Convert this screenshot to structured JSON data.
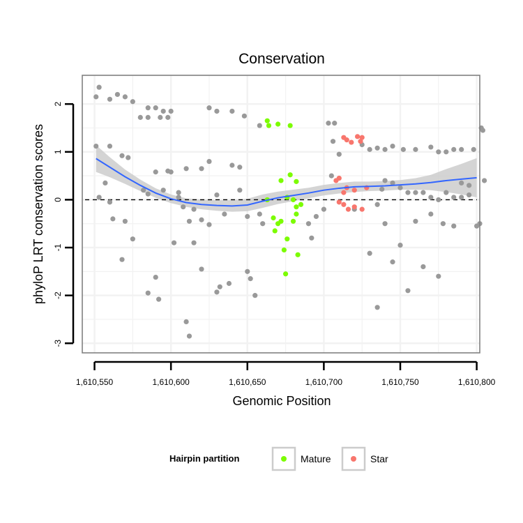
{
  "chart_data": {
    "type": "scatter",
    "title": "Conservation",
    "xlabel": "Genomic Position",
    "ylabel": "phyloP LRT conservation scores",
    "xlim": [
      1610542,
      1610802
    ],
    "ylim": [
      -3.2,
      2.6
    ],
    "x_ticks": [
      {
        "value": 1610550,
        "label": "1,610,550"
      },
      {
        "value": 1610600,
        "label": "1,610,600"
      },
      {
        "value": 1610650,
        "label": "1,610,650"
      },
      {
        "value": 1610700,
        "label": "1,610,700"
      },
      {
        "value": 1610750,
        "label": "1,610,750"
      },
      {
        "value": 1610800,
        "label": "1,610,800"
      }
    ],
    "y_ticks": [
      {
        "value": -3,
        "label": "-3"
      },
      {
        "value": -2,
        "label": "-2"
      },
      {
        "value": -1,
        "label": "-1"
      },
      {
        "value": 0,
        "label": "0"
      },
      {
        "value": 1,
        "label": "1"
      },
      {
        "value": 2,
        "label": "2"
      }
    ],
    "reference_line": {
      "y": 0,
      "style": "dashed",
      "color": "#000000"
    },
    "legend": {
      "title": "Hairpin partition",
      "position": "bottom",
      "entries": [
        {
          "label": "Mature",
          "color": "#7cfc00"
        },
        {
          "label": "Star",
          "color": "#f8766d"
        }
      ]
    },
    "colors": {
      "other": "#999999",
      "mature": "#7cfc00",
      "star": "#f8766d",
      "smooth_line": "#3366ff",
      "confidence_band": "#cccccc",
      "panel_grid": "#f2f2f2",
      "panel_border": "#808080"
    },
    "smooth": {
      "x": [
        1610551,
        1610560,
        1610570,
        1610580,
        1610590,
        1610600,
        1610610,
        1610620,
        1610630,
        1610640,
        1610650,
        1610660,
        1610670,
        1610680,
        1610690,
        1610700,
        1610710,
        1610720,
        1610730,
        1610740,
        1610750,
        1610760,
        1610770,
        1610780,
        1610790,
        1610800
      ],
      "y": [
        0.86,
        0.68,
        0.48,
        0.3,
        0.14,
        0.02,
        -0.06,
        -0.1,
        -0.12,
        -0.13,
        -0.11,
        -0.03,
        0.04,
        0.09,
        0.14,
        0.2,
        0.24,
        0.27,
        0.28,
        0.29,
        0.31,
        0.33,
        0.36,
        0.4,
        0.43,
        0.46
      ],
      "lower": [
        0.58,
        0.47,
        0.33,
        0.18,
        0.04,
        -0.07,
        -0.15,
        -0.2,
        -0.23,
        -0.25,
        -0.24,
        -0.17,
        -0.09,
        -0.03,
        0.03,
        0.09,
        0.13,
        0.16,
        0.18,
        0.19,
        0.21,
        0.21,
        0.2,
        0.16,
        0.11,
        0.05
      ],
      "upper": [
        1.14,
        0.89,
        0.63,
        0.42,
        0.24,
        0.11,
        0.03,
        0.0,
        -0.01,
        -0.01,
        0.02,
        0.11,
        0.17,
        0.21,
        0.25,
        0.31,
        0.35,
        0.38,
        0.38,
        0.39,
        0.41,
        0.45,
        0.52,
        0.64,
        0.75,
        0.87
      ]
    },
    "series": [
      {
        "name": "Other",
        "color": "#999999",
        "points": [
          [
            1610551,
            2.15
          ],
          [
            1610553,
            2.35
          ],
          [
            1610560,
            2.1
          ],
          [
            1610565,
            2.2
          ],
          [
            1610570,
            2.15
          ],
          [
            1610575,
            2.05
          ],
          [
            1610585,
            1.92
          ],
          [
            1610590,
            1.92
          ],
          [
            1610595,
            1.85
          ],
          [
            1610600,
            1.85
          ],
          [
            1610580,
            1.72
          ],
          [
            1610585,
            1.72
          ],
          [
            1610593,
            1.72
          ],
          [
            1610598,
            1.72
          ],
          [
            1610625,
            1.92
          ],
          [
            1610630,
            1.85
          ],
          [
            1610640,
            1.85
          ],
          [
            1610648,
            1.75
          ],
          [
            1610658,
            1.55
          ],
          [
            1610703,
            1.6
          ],
          [
            1610707,
            1.6
          ],
          [
            1610551,
            1.12
          ],
          [
            1610560,
            1.12
          ],
          [
            1610568,
            0.92
          ],
          [
            1610572,
            0.88
          ],
          [
            1610557,
            0.35
          ],
          [
            1610553,
            0.05
          ],
          [
            1610562,
            -0.4
          ],
          [
            1610560,
            -0.05
          ],
          [
            1610570,
            -0.45
          ],
          [
            1610575,
            -0.82
          ],
          [
            1610568,
            -1.25
          ],
          [
            1610585,
            -1.95
          ],
          [
            1610590,
            -1.62
          ],
          [
            1610592,
            -2.08
          ],
          [
            1610595,
            0.2
          ],
          [
            1610598,
            0.6
          ],
          [
            1610600,
            0.58
          ],
          [
            1610590,
            0.58
          ],
          [
            1610605,
            0.05
          ],
          [
            1610608,
            -0.15
          ],
          [
            1610602,
            -0.9
          ],
          [
            1610612,
            -0.45
          ],
          [
            1610615,
            -0.9
          ],
          [
            1610610,
            -2.55
          ],
          [
            1610612,
            -2.85
          ],
          [
            1610620,
            -1.45
          ],
          [
            1610625,
            -0.52
          ],
          [
            1610630,
            -1.93
          ],
          [
            1610632,
            -1.82
          ],
          [
            1610635,
            -0.3
          ],
          [
            1610640,
            0.72
          ],
          [
            1610645,
            0.68
          ],
          [
            1610638,
            -1.75
          ],
          [
            1610650,
            -1.5
          ],
          [
            1610652,
            -1.65
          ],
          [
            1610655,
            -2.0
          ],
          [
            1610660,
            -0.5
          ],
          [
            1610658,
            -0.3
          ],
          [
            1610650,
            -0.35
          ],
          [
            1610645,
            0.2
          ],
          [
            1610620,
            0.65
          ],
          [
            1610625,
            0.8
          ],
          [
            1610630,
            0.1
          ],
          [
            1610615,
            -0.2
          ],
          [
            1610620,
            -0.42
          ],
          [
            1610605,
            0.15
          ],
          [
            1610610,
            0.65
          ],
          [
            1610585,
            0.12
          ],
          [
            1610582,
            0.2
          ],
          [
            1610690,
            -0.5
          ],
          [
            1610692,
            -0.8
          ],
          [
            1610695,
            -0.35
          ],
          [
            1610700,
            -0.2
          ],
          [
            1610705,
            0.5
          ],
          [
            1610706,
            1.22
          ],
          [
            1610710,
            0.95
          ],
          [
            1610720,
            -0.2
          ],
          [
            1610730,
            -1.12
          ],
          [
            1610735,
            -0.1
          ],
          [
            1610738,
            0.22
          ],
          [
            1610740,
            -0.5
          ],
          [
            1610745,
            -1.3
          ],
          [
            1610750,
            -0.95
          ],
          [
            1610755,
            -1.9
          ],
          [
            1610760,
            -0.45
          ],
          [
            1610765,
            -1.4
          ],
          [
            1610770,
            -0.3
          ],
          [
            1610775,
            -1.6
          ],
          [
            1610778,
            -0.5
          ],
          [
            1610780,
            0.15
          ],
          [
            1610785,
            -0.55
          ],
          [
            1610790,
            0.05
          ],
          [
            1610795,
            0.1
          ],
          [
            1610800,
            -0.55
          ],
          [
            1610802,
            -0.5
          ],
          [
            1610805,
            0.4
          ],
          [
            1610803,
            1.5
          ],
          [
            1610804,
            1.45
          ],
          [
            1610735,
            -2.25
          ],
          [
            1610725,
            1.15
          ],
          [
            1610730,
            1.05
          ],
          [
            1610735,
            1.08
          ],
          [
            1610740,
            1.05
          ],
          [
            1610745,
            1.12
          ],
          [
            1610752,
            1.05
          ],
          [
            1610760,
            1.05
          ],
          [
            1610770,
            1.1
          ],
          [
            1610775,
            1.0
          ],
          [
            1610780,
            1.0
          ],
          [
            1610785,
            1.05
          ],
          [
            1610790,
            1.05
          ],
          [
            1610798,
            1.05
          ],
          [
            1610740,
            0.4
          ],
          [
            1610745,
            0.35
          ],
          [
            1610750,
            0.25
          ],
          [
            1610755,
            0.15
          ],
          [
            1610760,
            0.15
          ],
          [
            1610765,
            0.15
          ],
          [
            1610770,
            0.05
          ],
          [
            1610775,
            0.0
          ],
          [
            1610785,
            0.05
          ],
          [
            1610790,
            0.35
          ],
          [
            1610795,
            0.3
          ]
        ]
      },
      {
        "name": "Mature",
        "color": "#7cfc00",
        "points": [
          [
            1610663,
            1.65
          ],
          [
            1610664,
            1.55
          ],
          [
            1610670,
            1.58
          ],
          [
            1610678,
            1.55
          ],
          [
            1610672,
            0.4
          ],
          [
            1610678,
            0.52
          ],
          [
            1610682,
            0.38
          ],
          [
            1610663,
            0.0
          ],
          [
            1610676,
            0.05
          ],
          [
            1610680,
            0.0
          ],
          [
            1610682,
            -0.15
          ],
          [
            1610685,
            -0.1
          ],
          [
            1610667,
            -0.38
          ],
          [
            1610670,
            -0.5
          ],
          [
            1610672,
            -0.45
          ],
          [
            1610668,
            -0.65
          ],
          [
            1610676,
            -0.82
          ],
          [
            1610674,
            -1.05
          ],
          [
            1610680,
            -0.45
          ],
          [
            1610682,
            -0.3
          ],
          [
            1610683,
            -1.15
          ],
          [
            1610675,
            -1.55
          ]
        ]
      },
      {
        "name": "Star",
        "color": "#f8766d",
        "points": [
          [
            1610713,
            1.3
          ],
          [
            1610715,
            1.25
          ],
          [
            1610718,
            1.2
          ],
          [
            1610722,
            1.32
          ],
          [
            1610725,
            1.3
          ],
          [
            1610724,
            1.22
          ],
          [
            1610710,
            0.45
          ],
          [
            1610708,
            0.4
          ],
          [
            1610715,
            0.25
          ],
          [
            1610720,
            0.2
          ],
          [
            1610728,
            0.25
          ],
          [
            1610710,
            -0.05
          ],
          [
            1610713,
            -0.1
          ],
          [
            1610716,
            -0.2
          ],
          [
            1610720,
            -0.15
          ],
          [
            1610725,
            -0.2
          ],
          [
            1610713,
            0.15
          ]
        ]
      }
    ]
  }
}
